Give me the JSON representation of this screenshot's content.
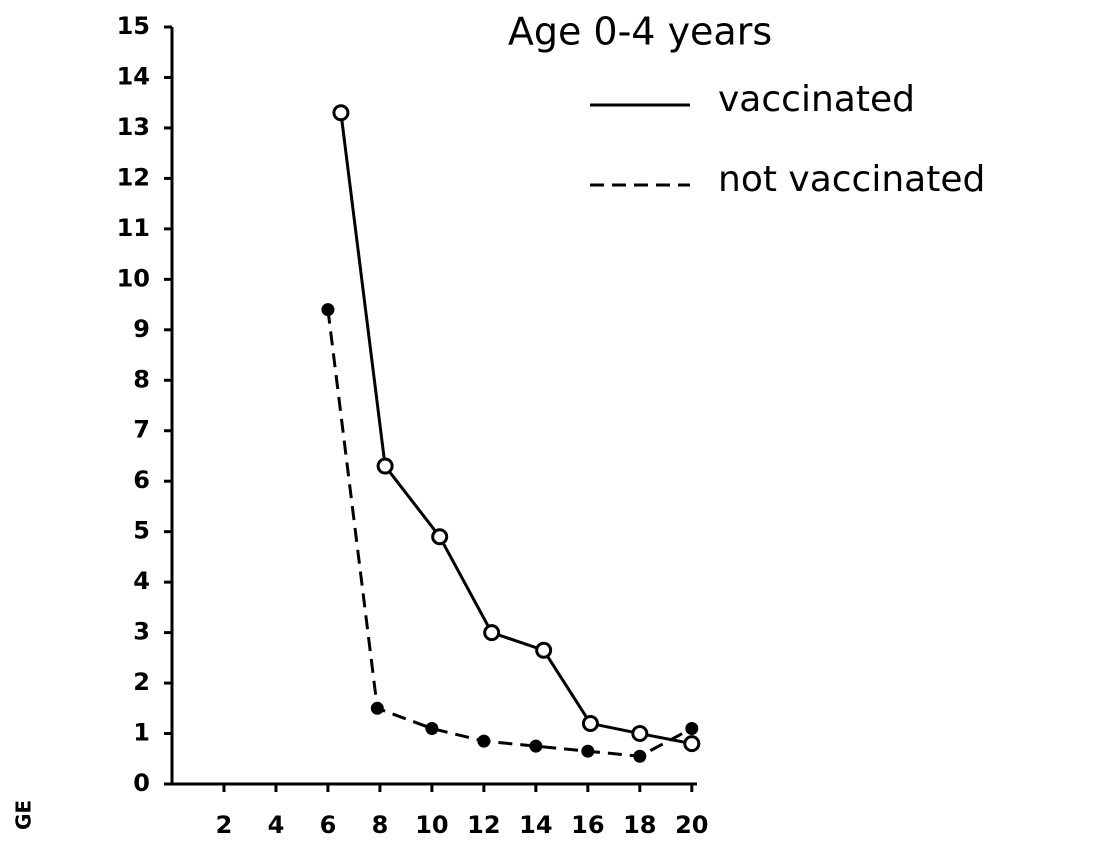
{
  "chart_data": {
    "type": "line",
    "title": "Age 0-4 years",
    "y_label": "GE",
    "xlim": [
      0,
      20.2
    ],
    "xticks": [
      2,
      4,
      6,
      8,
      10,
      12,
      14,
      16,
      18,
      20
    ],
    "ylim": [
      0,
      15
    ],
    "yticks": [
      0,
      1,
      2,
      3,
      4,
      5,
      6,
      7,
      8,
      9,
      10,
      11,
      12,
      13,
      14,
      15
    ],
    "grid": false,
    "series": [
      {
        "name": "vaccinated",
        "color": "#000000",
        "dash": false,
        "marker": "open",
        "x": [
          6.5,
          8.2,
          10.3,
          12.3,
          14.3,
          16.1,
          18,
          20
        ],
        "values": [
          13.3,
          6.3,
          4.9,
          3.0,
          2.65,
          1.2,
          1.0,
          0.8
        ]
      },
      {
        "name": "not vaccinated",
        "color": "#000000",
        "dash": true,
        "marker": "filled",
        "x": [
          6,
          7.9,
          10,
          12,
          14,
          16,
          18,
          20
        ],
        "values": [
          9.4,
          1.5,
          1.1,
          0.85,
          0.75,
          0.65,
          0.55,
          1.1
        ]
      }
    ]
  }
}
